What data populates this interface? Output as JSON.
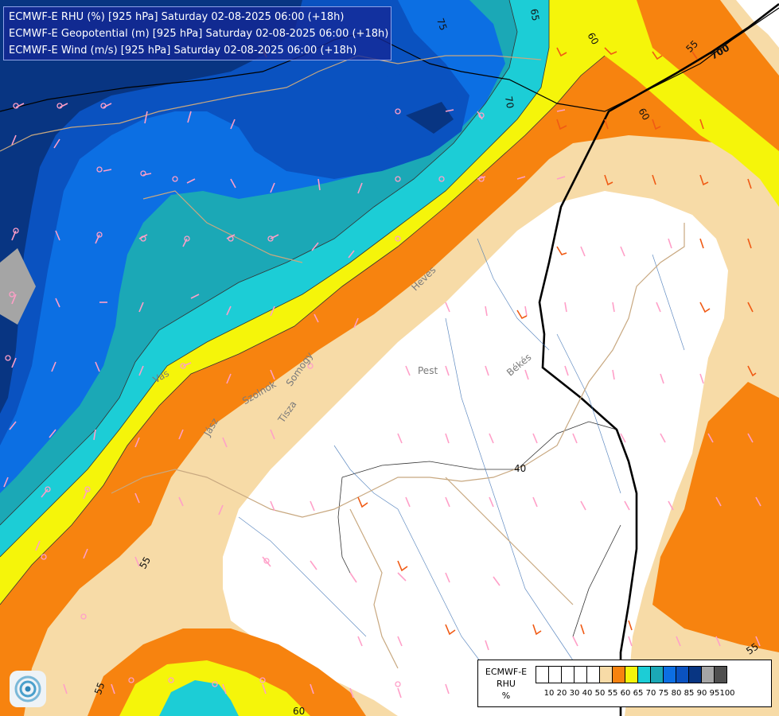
{
  "header": {
    "line1": "ECMWF-E RHU (%) [925 hPa] Saturday 02-08-2025 06:00 (+18h)",
    "line2": "ECMWF-E Geopotential (m) [925 hPa] Saturday 02-08-2025 06:00 (+18h)",
    "line3": "ECMWF-E Wind (m/s) [925 hPa] Saturday 02-08-2025 06:00 (+18h)"
  },
  "contour_labels": {
    "c75": "75",
    "c70": "70",
    "c65": "65",
    "c60_top": "60",
    "c60_right": "60",
    "c55_top": "55",
    "c55_left": "55",
    "c55_bottom": "55",
    "c55_right": "55",
    "c60_bottom": "60",
    "c40": "40",
    "geo_700": "700"
  },
  "place_labels": {
    "pest": "Pest",
    "bekes": "Békés",
    "heves": "Heves",
    "jasz": "Jász",
    "szolnok": "Szolnok",
    "vas": "Vas",
    "tisza": "Tisza",
    "somogy": "Somogy"
  },
  "legend": {
    "line1": "ECMWF-E",
    "line2": "RHU",
    "line3": "%",
    "colors": [
      "#ffffff",
      "#ffffff",
      "#ffffff",
      "#ffffff",
      "#ffffff",
      "#f7dba7",
      "#f7830f",
      "#f5f50a",
      "#1ccdd6",
      "#1ba8b6",
      "#0c6fe3",
      "#0a52c0",
      "#083582",
      "#a5a5a5",
      "#4f4f4f"
    ],
    "ticks": [
      "10",
      "20",
      "30",
      "40",
      "50",
      "55",
      "60",
      "65",
      "70",
      "75",
      "80",
      "85",
      "90",
      "95",
      "100"
    ]
  },
  "logo_icon": "ecmwf-swirl-icon"
}
